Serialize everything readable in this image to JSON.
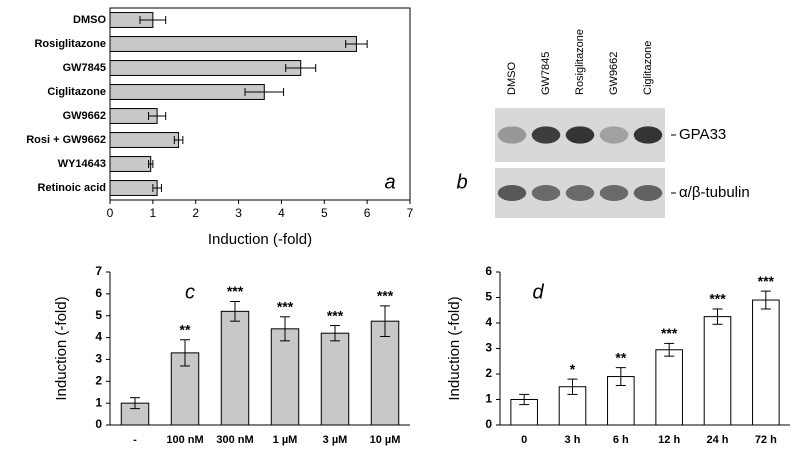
{
  "chart_data": [
    {
      "type": "hbar",
      "panel": "a",
      "categories": [
        "DMSO",
        "Rosiglitazone",
        "GW7845",
        "Ciglitazone",
        "GW9662",
        "Rosi + GW9662",
        "WY14643",
        "Retinoic acid"
      ],
      "values": [
        1.0,
        5.75,
        4.45,
        3.6,
        1.1,
        1.6,
        0.95,
        1.1
      ],
      "errors": [
        0.3,
        0.25,
        0.35,
        0.45,
        0.2,
        0.1,
        0.05,
        0.1
      ],
      "color": "#c8c8c8",
      "xlim": [
        0,
        7
      ],
      "xticks": [
        0,
        1,
        2,
        3,
        4,
        5,
        6,
        7
      ],
      "xlabel": "Induction (-fold)"
    },
    {
      "type": "blot",
      "panel": "b",
      "lanes": [
        "DMSO",
        "GW7845",
        "Rosiglitazone",
        "GW9662",
        "Ciglitazone"
      ],
      "bands": [
        "GPA33",
        "α/β-tubulin"
      ]
    },
    {
      "type": "bar",
      "panel": "c",
      "categories": [
        "-",
        "100 nM",
        "300 nM",
        "1 µM",
        "3 µM",
        "10 µM"
      ],
      "values": [
        1.0,
        3.3,
        5.2,
        4.4,
        4.2,
        4.75
      ],
      "errors": [
        0.25,
        0.6,
        0.45,
        0.55,
        0.35,
        0.7
      ],
      "annotations": [
        null,
        "**",
        "***",
        "***",
        "***",
        "***"
      ],
      "color": "#c8c8c8",
      "ylim": [
        0,
        7
      ],
      "yticks": [
        0,
        1,
        2,
        3,
        4,
        5,
        6,
        7
      ],
      "ylabel": "Induction (-fold)"
    },
    {
      "type": "bar",
      "panel": "d",
      "categories": [
        "0",
        "3 h",
        "6 h",
        "12 h",
        "24 h",
        "72 h"
      ],
      "values": [
        1.0,
        1.5,
        1.9,
        2.95,
        4.25,
        4.9
      ],
      "errors": [
        0.2,
        0.3,
        0.35,
        0.25,
        0.3,
        0.35
      ],
      "annotations": [
        null,
        "*",
        "**",
        "***",
        "***",
        "***"
      ],
      "color": "#ffffff",
      "ylim": [
        0,
        6
      ],
      "yticks": [
        0,
        1,
        2,
        3,
        4,
        5,
        6
      ],
      "ylabel": "Induction (-fold)"
    }
  ]
}
